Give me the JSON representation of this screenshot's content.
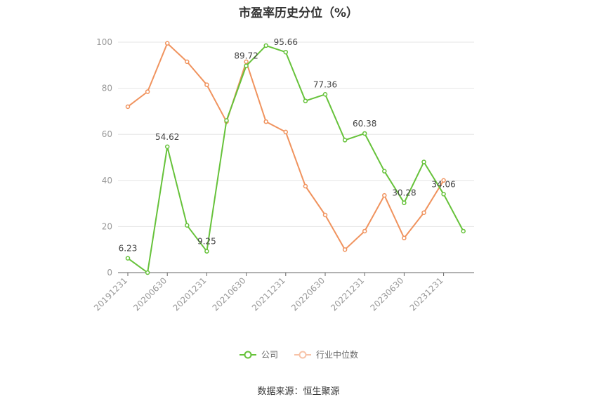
{
  "chart_data": {
    "type": "line",
    "title": "市盈率历史分位（%）",
    "xlabel": "",
    "ylabel": "",
    "ylim": [
      0,
      100
    ],
    "yticks": [
      0,
      20,
      40,
      60,
      80,
      100
    ],
    "x": [
      "20191231",
      "20200331",
      "20200630",
      "20200930",
      "20201231",
      "20210331",
      "20210630",
      "20210930",
      "20211231",
      "20220331",
      "20220630",
      "20220930",
      "20221231",
      "20230331",
      "20230630",
      "20230930",
      "20231231",
      "20240331"
    ],
    "x_tick_labels": [
      "20191231",
      "20200630",
      "20201231",
      "20210630",
      "20211231",
      "20220630",
      "20221231",
      "20230630",
      "20231231"
    ],
    "series": [
      {
        "name": "公司",
        "color": "#66c23a",
        "values": [
          6.23,
          0,
          54.62,
          20.5,
          9.25,
          66,
          89.72,
          98.5,
          95.66,
          74.5,
          77.36,
          57.5,
          60.38,
          44,
          30.28,
          48,
          34.06,
          18
        ],
        "data_labels": {
          "0": "6.23",
          "2": "54.62",
          "4": "9.25",
          "6": "89.72",
          "8": "95.66",
          "10": "77.36",
          "12": "60.38",
          "14": "30.28",
          "16": "34.06"
        }
      },
      {
        "name": "行业中位数",
        "color": "#f0935e",
        "values": [
          72,
          78.5,
          99.5,
          91.5,
          81.5,
          65.5,
          91.5,
          65.5,
          61,
          37.5,
          25,
          10,
          18,
          33.5,
          15,
          26,
          40,
          null
        ]
      }
    ],
    "grid": true,
    "legend_position": "bottom"
  },
  "legend": {
    "company": "公司",
    "industry": "行业中位数"
  },
  "source": "数据来源：恒生聚源"
}
